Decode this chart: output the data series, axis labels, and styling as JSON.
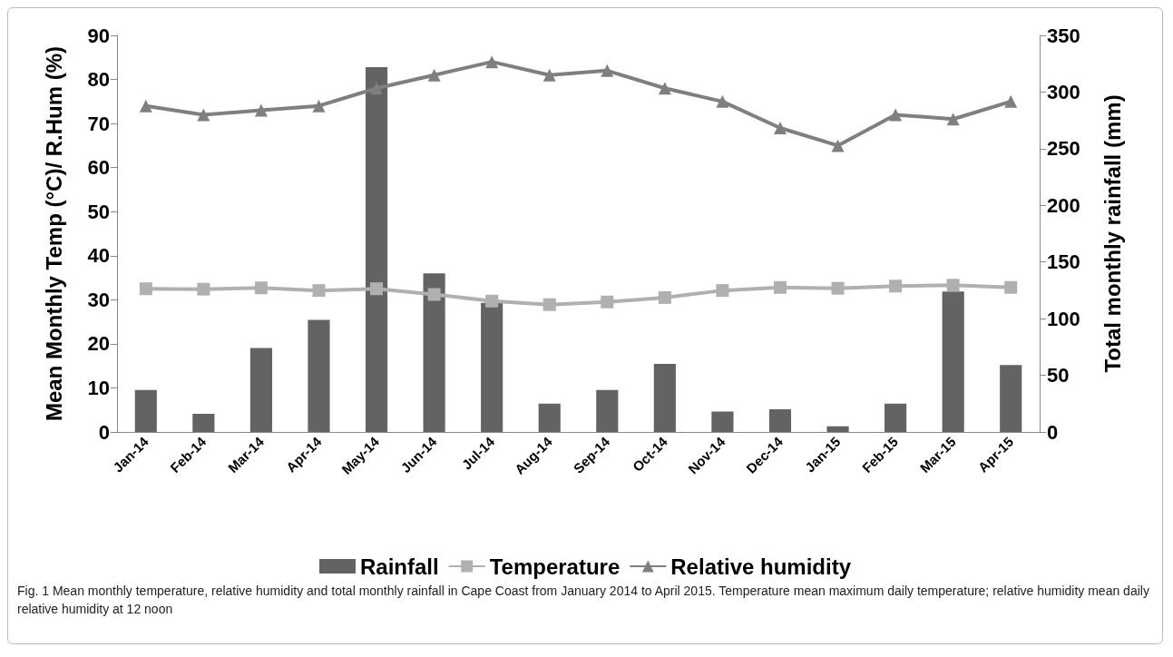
{
  "chart_data": {
    "type": "bar",
    "ylabel": "Mean Monthly Temp (°C)/ R.Hum (%)",
    "y2label": "Total monthly rainfall (mm)",
    "categories": [
      "Jan-14",
      "Feb-14",
      "Mar-14",
      "Apr-14",
      "May-14",
      "Jun-14",
      "Jul-14",
      "Aug-14",
      "Sep-14",
      "Oct-14",
      "Nov-14",
      "Dec-14",
      "Jan-15",
      "Feb-15",
      "Mar-15",
      "Apr-15"
    ],
    "series": [
      {
        "name": "Rainfall",
        "axis": "y2",
        "color": "#636363",
        "values": [
          37,
          16,
          74,
          99,
          322,
          140,
          114,
          25,
          37,
          60,
          18,
          20,
          5,
          25,
          124,
          59
        ]
      },
      {
        "name": "Temperature",
        "type": "line",
        "marker": "square",
        "color": "#b0b0b0",
        "values": [
          32.5,
          32.4,
          32.7,
          32.1,
          32.5,
          31.2,
          29.7,
          28.9,
          29.5,
          30.5,
          32.1,
          32.8,
          32.6,
          33.1,
          33.3,
          32.8
        ]
      },
      {
        "name": "Relative humidity",
        "type": "line",
        "marker": "triangle",
        "color": "#7f7f7f",
        "values": [
          74,
          72,
          73,
          74,
          78,
          81,
          84,
          81,
          82,
          78,
          75,
          69,
          65,
          72,
          71,
          75
        ]
      }
    ],
    "ylim": [
      0,
      90
    ],
    "yticks": [
      0,
      10,
      20,
      30,
      40,
      50,
      60,
      70,
      80,
      90
    ],
    "y2lim": [
      0,
      350
    ],
    "y2ticks": [
      0,
      50,
      100,
      150,
      200,
      250,
      300,
      350
    ],
    "grid": false,
    "legend": "bottom",
    "annotations": [
      "Fig. 1  Mean monthly temperature, relative humidity and total monthly rainfall in Cape Coast from January 2014 to April 2015. Temperature mean maximum daily temperature; relative humidity mean daily relative humidity at 12 noon"
    ]
  }
}
